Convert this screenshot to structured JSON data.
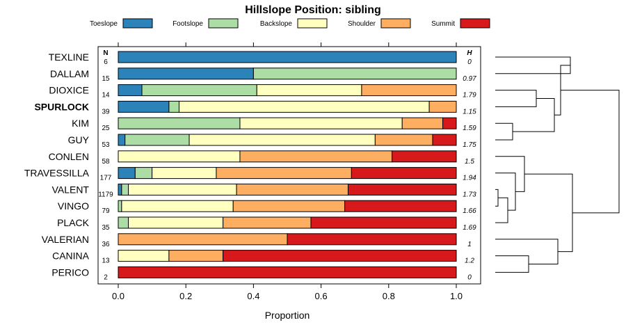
{
  "chart_data": {
    "type": "bar",
    "orientation": "horizontal",
    "stacked": true,
    "title": "Hillslope Position: sibling",
    "xlabel": "Proportion",
    "xlim": [
      0,
      1
    ],
    "xticks": [
      "0.0",
      "0.2",
      "0.4",
      "0.6",
      "0.8",
      "1.0"
    ],
    "n_header": "N",
    "h_header": "H",
    "series_names": [
      "Toeslope",
      "Footslope",
      "Backslope",
      "Shoulder",
      "Summit"
    ],
    "colors": [
      "#2b83ba",
      "#abdda4",
      "#ffffbf",
      "#fdae61",
      "#d7191c"
    ],
    "rows": [
      {
        "label": "TEXLINE",
        "n": "6",
        "h": "0",
        "bold": false,
        "values": [
          1.0,
          0.0,
          0.0,
          0.0,
          0.0
        ]
      },
      {
        "label": "DALLAM",
        "n": "15",
        "h": "0.97",
        "bold": false,
        "values": [
          0.4,
          0.6,
          0.0,
          0.0,
          0.0
        ]
      },
      {
        "label": "DIOXICE",
        "n": "14",
        "h": "1.79",
        "bold": false,
        "values": [
          0.07,
          0.34,
          0.31,
          0.28,
          0.0
        ]
      },
      {
        "label": "SPURLOCK",
        "n": "39",
        "h": "1.15",
        "bold": true,
        "values": [
          0.15,
          0.03,
          0.74,
          0.08,
          0.0
        ]
      },
      {
        "label": "KIM",
        "n": "25",
        "h": "1.59",
        "bold": false,
        "values": [
          0.0,
          0.36,
          0.48,
          0.12,
          0.04
        ]
      },
      {
        "label": "GUY",
        "n": "53",
        "h": "1.75",
        "bold": false,
        "values": [
          0.02,
          0.19,
          0.55,
          0.17,
          0.07
        ]
      },
      {
        "label": "CONLEN",
        "n": "58",
        "h": "1.5",
        "bold": false,
        "values": [
          0.0,
          0.0,
          0.36,
          0.45,
          0.19
        ]
      },
      {
        "label": "TRAVESSILLA",
        "n": "177",
        "h": "1.94",
        "bold": false,
        "values": [
          0.05,
          0.05,
          0.19,
          0.4,
          0.31
        ]
      },
      {
        "label": "VALENT",
        "n": "1179",
        "h": "1.73",
        "bold": false,
        "values": [
          0.01,
          0.02,
          0.32,
          0.33,
          0.32
        ]
      },
      {
        "label": "VINGO",
        "n": "79",
        "h": "1.66",
        "bold": false,
        "values": [
          0.0,
          0.01,
          0.33,
          0.33,
          0.33
        ]
      },
      {
        "label": "PLACK",
        "n": "35",
        "h": "1.69",
        "bold": false,
        "values": [
          0.0,
          0.03,
          0.28,
          0.26,
          0.43
        ]
      },
      {
        "label": "VALERIAN",
        "n": "36",
        "h": "1",
        "bold": false,
        "values": [
          0.0,
          0.0,
          0.0,
          0.5,
          0.5
        ]
      },
      {
        "label": "CANINA",
        "n": "13",
        "h": "1.2",
        "bold": false,
        "values": [
          0.0,
          0.0,
          0.15,
          0.16,
          0.69
        ]
      },
      {
        "label": "PERICO",
        "n": "2",
        "h": "0",
        "bold": false,
        "values": [
          0.0,
          0.0,
          0.0,
          0.0,
          1.0
        ]
      }
    ]
  }
}
